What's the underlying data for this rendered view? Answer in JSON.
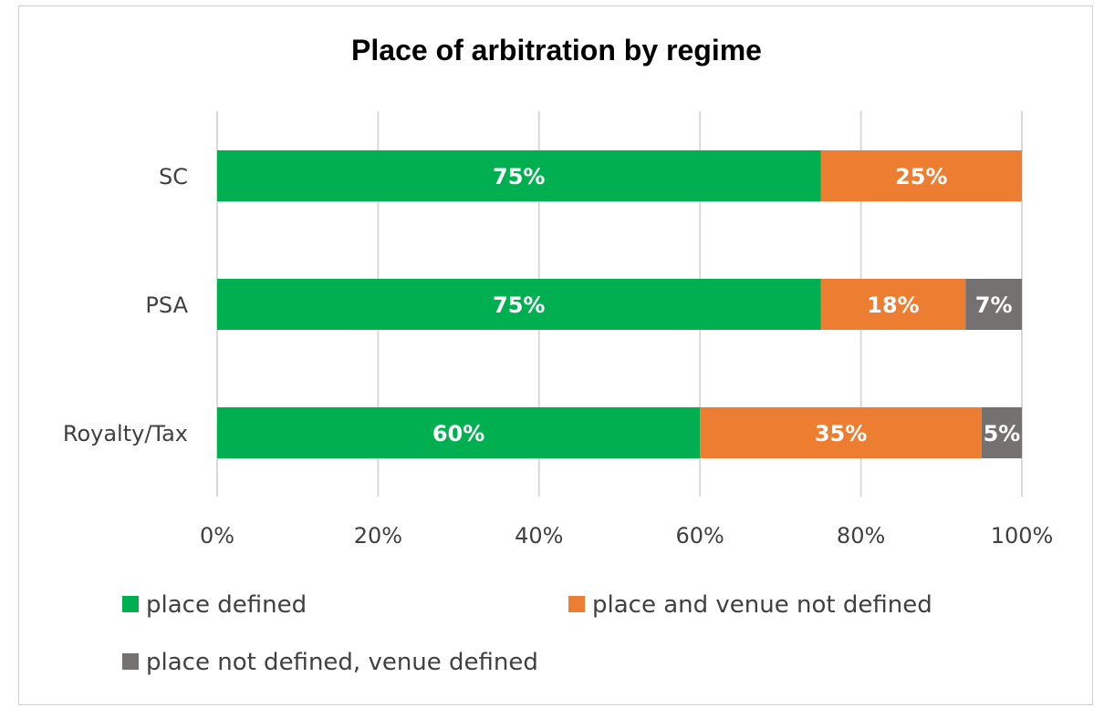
{
  "chart_data": {
    "type": "bar",
    "orientation": "horizontal",
    "stacked": true,
    "title": "Place of arbitration by regime",
    "categories": [
      "SC",
      "PSA",
      "Royalty/Tax"
    ],
    "series": [
      {
        "name": "place defined",
        "color": "#00B050",
        "values": [
          75,
          75,
          60
        ],
        "labels": [
          "75%",
          "75%",
          "60%"
        ]
      },
      {
        "name": "place and venue not defined",
        "color": "#ED7D31",
        "values": [
          25,
          18,
          35
        ],
        "labels": [
          "25%",
          "18%",
          "35%"
        ]
      },
      {
        "name": "place not defined, venue defined",
        "color": "#767171",
        "values": [
          0,
          7,
          5
        ],
        "labels": [
          "",
          "7%",
          "5%"
        ]
      }
    ],
    "xlim": [
      0,
      100
    ],
    "xticks": [
      0,
      20,
      40,
      60,
      80,
      100
    ],
    "xtick_labels": [
      "0%",
      "20%",
      "40%",
      "60%",
      "80%",
      "100%"
    ],
    "grid": true,
    "legend_position": "bottom"
  }
}
